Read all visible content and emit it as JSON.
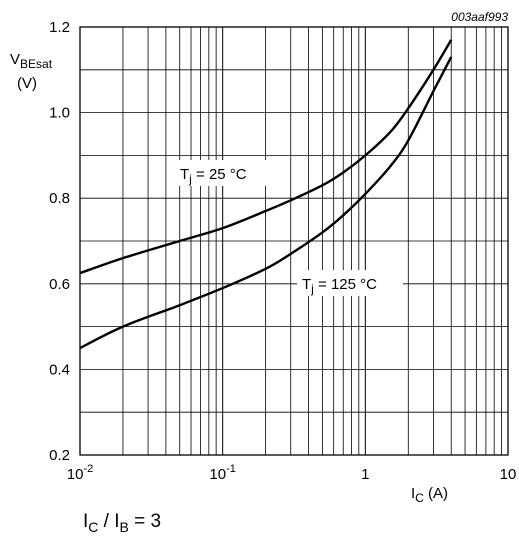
{
  "chart_data": {
    "type": "line",
    "figure_code": "003aaf993",
    "x_scale": "log",
    "xlim": [
      0.01,
      10
    ],
    "ylim": [
      0.2,
      1.2
    ],
    "grid": true,
    "x_tick_labels": [
      {
        "value": 0.01,
        "base": "10",
        "exp": "-2"
      },
      {
        "value": 0.1,
        "base": "10",
        "exp": "-1"
      },
      {
        "value": 1,
        "base": "1",
        "exp": ""
      },
      {
        "value": 10,
        "base": "10",
        "exp": ""
      }
    ],
    "y_ticks": [
      0.2,
      0.4,
      0.6,
      0.8,
      1.0,
      1.2
    ],
    "y_tick_labels": [
      "0.2",
      "0.4",
      "0.6",
      "0.8",
      "1.0",
      "1.2"
    ],
    "xlabel": {
      "main": "I",
      "sub": "C",
      "unit": " (A)"
    },
    "ylabel": {
      "main": "V",
      "sub": "BEsat",
      "unit": "(V)"
    },
    "series": [
      {
        "name": "T_j = 25 °C",
        "label": {
          "main": "T",
          "sub": "j",
          "rest": " = 25 °C"
        },
        "color": "#000000",
        "x": [
          0.01,
          0.02,
          0.05,
          0.1,
          0.2,
          0.3,
          0.5,
          0.7,
          1.0,
          1.5,
          2.0,
          3.0,
          4.0
        ],
        "y": [
          0.625,
          0.66,
          0.7,
          0.73,
          0.77,
          0.795,
          0.83,
          0.86,
          0.9,
          0.955,
          1.01,
          1.1,
          1.17
        ]
      },
      {
        "name": "T_j = 125 °C",
        "label": {
          "main": "T",
          "sub": "j",
          "rest": " = 125 °C"
        },
        "color": "#000000",
        "x": [
          0.01,
          0.02,
          0.05,
          0.1,
          0.2,
          0.3,
          0.5,
          0.7,
          1.0,
          1.5,
          2.0,
          3.0,
          4.0
        ],
        "y": [
          0.45,
          0.5,
          0.55,
          0.59,
          0.635,
          0.67,
          0.72,
          0.76,
          0.81,
          0.875,
          0.935,
          1.05,
          1.13
        ]
      }
    ],
    "condition": {
      "i1": "I",
      "s1": "C",
      "sep": " / ",
      "i2": "I",
      "s2": "B",
      "rest": " = 3"
    }
  }
}
